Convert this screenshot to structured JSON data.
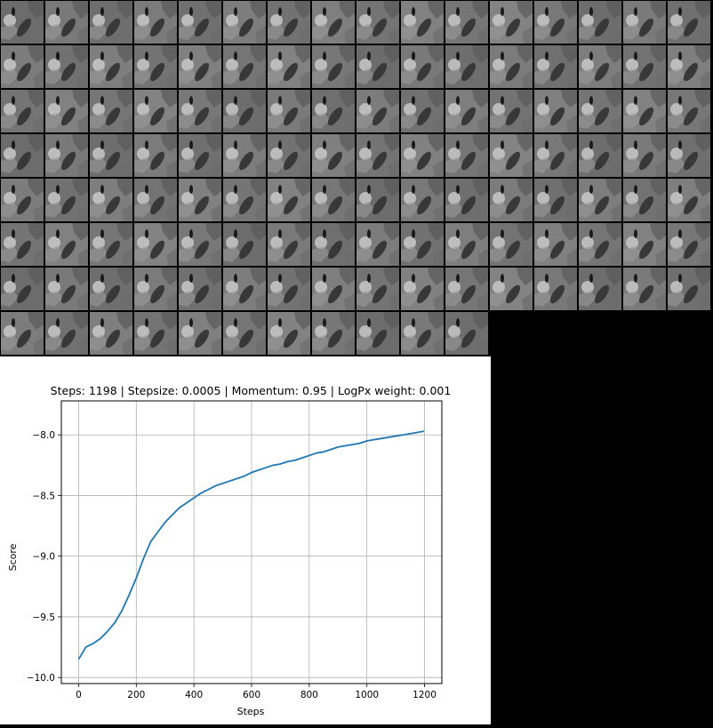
{
  "sample_grid": {
    "rows": 8,
    "columns": 16,
    "tile_count": 123,
    "tile_description": "grayscale sample"
  },
  "chart_data": {
    "type": "line",
    "title": "Steps: 1198 | Stepsize: 0.0005 | Momentum: 0.95 | LogPx weight: 0.001",
    "xlabel": "Steps",
    "ylabel": "Score",
    "xlim": [
      -60,
      1260
    ],
    "ylim": [
      -10.05,
      -7.72
    ],
    "xticks": [
      0,
      200,
      400,
      600,
      800,
      1000,
      1200
    ],
    "xtick_labels": [
      "0",
      "200",
      "400",
      "600",
      "800",
      "1000",
      "1200"
    ],
    "yticks": [
      -10.0,
      -9.5,
      -9.0,
      -8.5,
      -8.0
    ],
    "ytick_labels": [
      "−10.0",
      "−9.5",
      "−9.0",
      "−8.5",
      "−8.0"
    ],
    "grid": true,
    "line_color": "#1f77b4",
    "series": [
      {
        "x": [
          0,
          25,
          50,
          75,
          100,
          125,
          150,
          175,
          200,
          225,
          250,
          275,
          300,
          325,
          350,
          375,
          400,
          425,
          450,
          475,
          500,
          525,
          550,
          575,
          600,
          625,
          650,
          675,
          700,
          725,
          750,
          775,
          800,
          825,
          850,
          875,
          900,
          925,
          950,
          975,
          1000,
          1025,
          1050,
          1075,
          1100,
          1125,
          1150,
          1175,
          1198
        ],
        "y": [
          -9.85,
          -9.75,
          -9.72,
          -9.68,
          -9.62,
          -9.55,
          -9.45,
          -9.32,
          -9.18,
          -9.02,
          -8.88,
          -8.8,
          -8.72,
          -8.66,
          -8.6,
          -8.56,
          -8.52,
          -8.48,
          -8.45,
          -8.42,
          -8.4,
          -8.38,
          -8.36,
          -8.34,
          -8.31,
          -8.29,
          -8.27,
          -8.25,
          -8.24,
          -8.22,
          -8.21,
          -8.19,
          -8.17,
          -8.15,
          -8.14,
          -8.12,
          -8.1,
          -8.09,
          -8.08,
          -8.07,
          -8.05,
          -8.04,
          -8.03,
          -8.02,
          -8.01,
          -8.0,
          -7.99,
          -7.98,
          -7.97
        ]
      }
    ]
  }
}
